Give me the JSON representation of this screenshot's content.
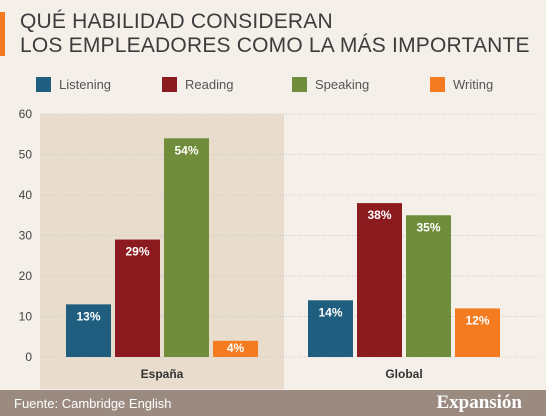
{
  "title_line1": "QUÉ HABILIDAD CONSIDERAN",
  "title_line2": "LOS EMPLEADORES COMO LA MÁS IMPORTANTE",
  "source": "Fuente: Cambridge English",
  "logo": "Expansión",
  "colors": {
    "accent": "#f47b20",
    "footer_bg": "#9a8a80",
    "panel_bg": "#e8dccd",
    "axis_text": "#444444"
  },
  "chart_data": {
    "type": "bar",
    "categories": [
      "España",
      "Global"
    ],
    "series": [
      {
        "name": "Listening",
        "color": "#1f5e7f",
        "values": [
          13,
          14
        ],
        "labels": [
          "13%",
          "14%"
        ]
      },
      {
        "name": "Reading",
        "color": "#8c1b1f",
        "values": [
          29,
          38
        ],
        "labels": [
          "29%",
          "38%"
        ]
      },
      {
        "name": "Speaking",
        "color": "#6f8d3a",
        "values": [
          54,
          35
        ],
        "labels": [
          "54%",
          "35%"
        ]
      },
      {
        "name": "Writing",
        "color": "#f47b20",
        "values": [
          4,
          12
        ],
        "labels": [
          "4%",
          "12%"
        ]
      }
    ],
    "ylim": [
      0,
      60
    ],
    "yticks": [
      0,
      10,
      20,
      30,
      40,
      50,
      60
    ],
    "grid": true,
    "highlighted_category": "España",
    "legend_position": "top"
  }
}
